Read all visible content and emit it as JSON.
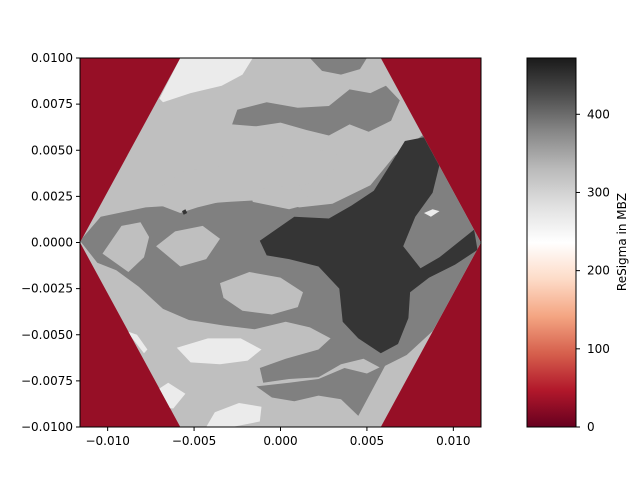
{
  "chart_data": {
    "type": "heatmap",
    "title": "",
    "xlabel": "",
    "ylabel": "",
    "xlim": [
      -0.0116,
      0.0116
    ],
    "ylim": [
      -0.01,
      0.01
    ],
    "x_ticks": [
      -0.01,
      -0.005,
      0.0,
      0.005,
      0.01
    ],
    "x_tick_labels": [
      "−0.010",
      "−0.005",
      "0.000",
      "0.005",
      "0.010"
    ],
    "y_ticks": [
      0.01,
      0.0075,
      0.005,
      0.0025,
      0.0,
      -0.0025,
      -0.005,
      -0.0075,
      -0.01
    ],
    "y_tick_labels": [
      "0.0100",
      "0.0075",
      "0.0050",
      "0.0025",
      "0.0000",
      "−0.0025",
      "−0.0050",
      "−0.0075",
      "−0.0100"
    ],
    "outside_value": 0,
    "hexagon_vertices": [
      [
        -0.0116,
        0.0
      ],
      [
        -0.0058,
        0.01
      ],
      [
        0.0058,
        0.01
      ],
      [
        0.0116,
        0.0
      ],
      [
        0.0058,
        -0.01
      ],
      [
        -0.0058,
        -0.01
      ]
    ],
    "levels": [
      {
        "value": 320,
        "color": "#bfbfbf"
      },
      {
        "value": 380,
        "color": "#808080"
      },
      {
        "value": 440,
        "color": "#353535"
      },
      {
        "value": 260,
        "color": "#ebebeb"
      }
    ],
    "regions": [
      {
        "level": 1,
        "points": [
          [
            -0.0116,
            0.0001
          ],
          [
            -0.0104,
            0.0014
          ],
          [
            -0.0078,
            0.0019
          ],
          [
            -0.0045,
            0.0021
          ],
          [
            -0.003,
            0.0022
          ],
          [
            -0.0012,
            0.0023
          ],
          [
            0.0011,
            0.0019
          ],
          [
            0.003,
            0.0021
          ],
          [
            0.0052,
            0.0031
          ],
          [
            0.0066,
            0.0047
          ],
          [
            0.0085,
            0.006
          ],
          [
            0.0095,
            0.0043
          ],
          [
            0.0116,
            0.0
          ],
          [
            0.0102,
            -0.0025
          ],
          [
            0.0088,
            -0.0048
          ],
          [
            0.0073,
            -0.0061
          ],
          [
            0.0058,
            -0.0068
          ],
          [
            0.0048,
            -0.0063
          ],
          [
            0.0035,
            -0.0066
          ],
          [
            0.0022,
            -0.0073
          ],
          [
            0.0005,
            -0.0074
          ],
          [
            -0.001,
            -0.0076
          ],
          [
            -0.0012,
            -0.0068
          ],
          [
            0.0003,
            -0.0063
          ],
          [
            0.0022,
            -0.0058
          ],
          [
            0.0029,
            -0.0052
          ],
          [
            0.0017,
            -0.0046
          ],
          [
            0.0003,
            -0.0043
          ],
          [
            -0.0015,
            -0.0047
          ],
          [
            -0.0033,
            -0.0045
          ],
          [
            -0.0053,
            -0.0042
          ],
          [
            -0.0068,
            -0.0036
          ],
          [
            -0.0082,
            -0.0024
          ],
          [
            -0.0095,
            -0.0015
          ],
          [
            -0.0106,
            -0.0011
          ]
        ]
      },
      {
        "level": 1,
        "points": [
          [
            -0.0025,
            0.0072
          ],
          [
            -0.0008,
            0.0076
          ],
          [
            0.001,
            0.0073
          ],
          [
            0.0028,
            0.0074
          ],
          [
            0.004,
            0.0083
          ],
          [
            0.0052,
            0.0081
          ],
          [
            0.0061,
            0.0085
          ],
          [
            0.0069,
            0.0077
          ],
          [
            0.0064,
            0.0066
          ],
          [
            0.0051,
            0.006
          ],
          [
            0.004,
            0.0064
          ],
          [
            0.0028,
            0.0058
          ],
          [
            0.0015,
            0.0061
          ],
          [
            0.0,
            0.0065
          ],
          [
            -0.0014,
            0.0063
          ],
          [
            -0.0028,
            0.0064
          ]
        ]
      },
      {
        "level": 1,
        "points": [
          [
            0.0017,
            0.01
          ],
          [
            0.0024,
            0.0093
          ],
          [
            0.0035,
            0.0091
          ],
          [
            0.0046,
            0.0094
          ],
          [
            0.005,
            0.01
          ]
        ]
      },
      {
        "level": 1,
        "points": [
          [
            -0.0014,
            -0.0078
          ],
          [
            0.0005,
            -0.0076
          ],
          [
            0.0022,
            -0.0074
          ],
          [
            0.0037,
            -0.0068
          ],
          [
            0.005,
            -0.0071
          ],
          [
            0.0061,
            -0.0066
          ],
          [
            0.0045,
            -0.0094
          ],
          [
            0.0035,
            -0.0085
          ],
          [
            0.0022,
            -0.0083
          ],
          [
            0.0008,
            -0.0086
          ],
          [
            -0.0005,
            -0.0084
          ]
        ]
      }
    ],
    "regions_light": [
      {
        "points": [
          [
            -0.0072,
            0.0021
          ],
          [
            -0.0058,
            0.0016
          ],
          [
            -0.0048,
            0.0019
          ],
          [
            -0.0035,
            0.0022
          ],
          [
            -0.0018,
            0.0026
          ],
          [
            0.0,
            0.0029
          ],
          [
            0.0017,
            0.0032
          ],
          [
            0.0029,
            0.0037
          ],
          [
            0.0035,
            0.0046
          ],
          [
            0.0028,
            0.0051
          ],
          [
            0.0012,
            0.0047
          ],
          [
            -0.0005,
            0.0046
          ],
          [
            -0.002,
            0.0043
          ],
          [
            -0.0038,
            0.0041
          ],
          [
            -0.0055,
            0.0039
          ],
          [
            -0.0068,
            0.0031
          ]
        ]
      },
      {
        "points": [
          [
            -0.0088,
            -0.0016
          ],
          [
            -0.0079,
            -0.0008
          ],
          [
            -0.0076,
            0.0003
          ],
          [
            -0.0081,
            0.0011
          ],
          [
            -0.0092,
            0.0009
          ],
          [
            -0.0103,
            -0.0006
          ]
        ]
      },
      {
        "points": [
          [
            -0.0072,
            -0.0002
          ],
          [
            -0.0061,
            0.0006
          ],
          [
            -0.0045,
            0.0009
          ],
          [
            -0.0035,
            0.0002
          ],
          [
            -0.0043,
            -0.0009
          ],
          [
            -0.0058,
            -0.0013
          ]
        ]
      },
      {
        "points": [
          [
            -0.0035,
            -0.0022
          ],
          [
            -0.0018,
            -0.0016
          ],
          [
            0.0,
            -0.0019
          ],
          [
            0.0013,
            -0.0027
          ],
          [
            0.001,
            -0.0035
          ],
          [
            -0.0005,
            -0.0039
          ],
          [
            -0.0022,
            -0.0037
          ],
          [
            -0.0033,
            -0.003
          ]
        ]
      },
      {
        "points": [
          [
            -0.0018,
            0.0028
          ],
          [
            0.0005,
            0.0031
          ],
          [
            0.0015,
            0.0028
          ],
          [
            0.0017,
            0.0021
          ],
          [
            0.0005,
            0.0018
          ],
          [
            -0.0016,
            0.0022
          ]
        ]
      }
    ],
    "regions_dark": [
      {
        "points": [
          [
            -0.0012,
            0.0001
          ],
          [
            0.0008,
            0.0014
          ],
          [
            0.0028,
            0.0013
          ],
          [
            0.0041,
            0.002
          ],
          [
            0.0054,
            0.0028
          ],
          [
            0.0062,
            0.004
          ],
          [
            0.0072,
            0.0055
          ],
          [
            0.0083,
            0.0057
          ],
          [
            0.0092,
            0.0042
          ],
          [
            0.0088,
            0.0027
          ],
          [
            0.0078,
            0.0014
          ],
          [
            0.0071,
            -0.0002
          ],
          [
            0.0081,
            -0.0014
          ],
          [
            0.0092,
            -0.0008
          ],
          [
            0.0112,
            0.0007
          ],
          [
            0.0114,
            -0.0004
          ],
          [
            0.0101,
            -0.0012
          ],
          [
            0.0086,
            -0.0019
          ],
          [
            0.0075,
            -0.0027
          ],
          [
            0.0074,
            -0.0041
          ],
          [
            0.0068,
            -0.0055
          ],
          [
            0.0058,
            -0.006
          ],
          [
            0.0045,
            -0.0052
          ],
          [
            0.0036,
            -0.0043
          ],
          [
            0.0034,
            -0.0025
          ],
          [
            0.0022,
            -0.0013
          ],
          [
            0.0005,
            -0.0009
          ],
          [
            -0.0008,
            -0.0007
          ]
        ]
      },
      {
        "points": [
          [
            -0.0057,
            0.0017
          ],
          [
            -0.0055,
            0.0018
          ],
          [
            -0.0054,
            0.0016
          ],
          [
            -0.0056,
            0.0015
          ]
        ]
      }
    ],
    "regions_white": [
      {
        "points": [
          [
            -0.0058,
            0.01
          ],
          [
            -0.0016,
            0.01
          ],
          [
            -0.0022,
            0.0091
          ],
          [
            -0.0034,
            0.0085
          ],
          [
            -0.0052,
            0.0081
          ],
          [
            -0.0068,
            0.0076
          ],
          [
            -0.007,
            0.0078
          ]
        ]
      },
      {
        "points": [
          [
            -0.006,
            -0.0057
          ],
          [
            -0.0042,
            -0.0052
          ],
          [
            -0.0023,
            -0.0052
          ],
          [
            -0.0011,
            -0.0058
          ],
          [
            -0.0019,
            -0.0064
          ],
          [
            -0.0035,
            -0.0066
          ],
          [
            -0.0052,
            -0.0065
          ]
        ]
      },
      {
        "points": [
          [
            -0.0038,
            -0.0092
          ],
          [
            -0.0024,
            -0.0087
          ],
          [
            -0.0011,
            -0.0089
          ],
          [
            -0.0012,
            -0.0097
          ],
          [
            -0.0028,
            -0.01
          ],
          [
            -0.0043,
            -0.01
          ]
        ]
      },
      {
        "points": [
          [
            -0.0078,
            -0.0084
          ],
          [
            -0.0065,
            -0.0076
          ],
          [
            -0.0055,
            -0.0082
          ],
          [
            -0.0062,
            -0.009
          ],
          [
            -0.0073,
            -0.0089
          ]
        ]
      },
      {
        "points": [
          [
            -0.0089,
            -0.0048
          ],
          [
            -0.0084,
            -0.0054
          ],
          [
            -0.0079,
            -0.006
          ],
          [
            -0.0077,
            -0.0058
          ],
          [
            -0.0083,
            -0.005
          ]
        ]
      },
      {
        "points": [
          [
            0.0083,
            0.0016
          ],
          [
            0.0088,
            0.0018
          ],
          [
            0.0092,
            0.0017
          ],
          [
            0.0087,
            0.0014
          ]
        ]
      }
    ],
    "colorbar": {
      "label": "ReSigma in MBZ",
      "min": 0,
      "max": 472,
      "ticks": [
        0,
        100,
        200,
        300,
        400
      ],
      "tick_labels": [
        "0",
        "100",
        "200",
        "300",
        "400"
      ],
      "colormap": "RdGy"
    }
  },
  "colors": {
    "outside_red": "#960f26",
    "axis": "#000000"
  }
}
